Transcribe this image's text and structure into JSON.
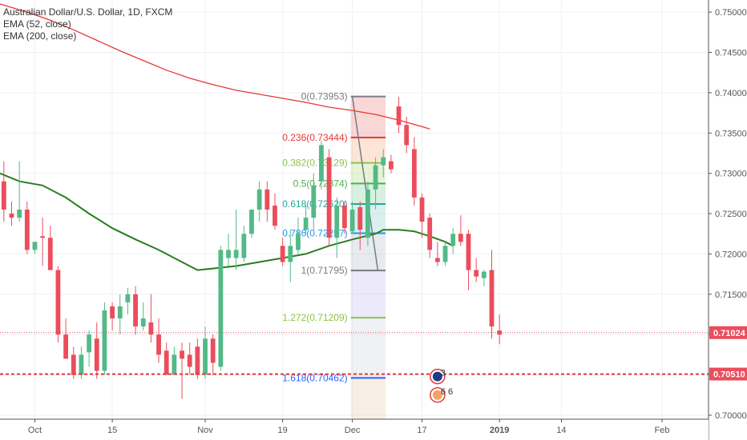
{
  "header": {
    "title": "Australian Dollar/U.S. Dollar, 1D, FXCM",
    "indicators": [
      "EMA (52, close)",
      "EMA (200, close)"
    ]
  },
  "colors": {
    "up": "#53b987",
    "down": "#eb4d5c",
    "ema52": "#2a7d1f",
    "ema200": "#e53935",
    "last_price_bg": "#eb4d5c",
    "support_line": "#e53935",
    "axis_text": "#555555"
  },
  "chart_data": {
    "type": "candlestick",
    "title": "Australian Dollar/U.S. Dollar, 1D, FXCM",
    "ylim": [
      0.6995,
      0.7515
    ],
    "y_ticks": [
      "0.75000",
      "0.74500",
      "0.74000",
      "0.73500",
      "0.73000",
      "0.72500",
      "0.72000",
      "0.71500",
      "0.71000",
      "0.70500",
      "0.70000"
    ],
    "x_ticks": [
      {
        "label": "Oct",
        "index": 4
      },
      {
        "label": "15",
        "index": 14
      },
      {
        "label": "Nov",
        "index": 26
      },
      {
        "label": "19",
        "index": 36
      },
      {
        "label": "Dec",
        "index": 45
      },
      {
        "label": "17",
        "index": 54
      },
      {
        "label": "2019",
        "index": 64
      },
      {
        "label": "14",
        "index": 72
      },
      {
        "label": "Feb",
        "index": 85
      }
    ],
    "index_range": [
      -0.5,
      91
    ],
    "last_price": "0.71024",
    "support_level": "0.70510",
    "candles": [
      [
        0.729,
        0.73,
        0.727,
        0.7285
      ],
      [
        0.729,
        0.7315,
        0.724,
        0.7255
      ],
      [
        0.725,
        0.7265,
        0.7235,
        0.7245
      ],
      [
        0.7245,
        0.7315,
        0.724,
        0.7255
      ],
      [
        0.7255,
        0.7265,
        0.72,
        0.7205
      ],
      [
        0.7205,
        0.7215,
        0.72,
        0.7215
      ],
      [
        0.7222,
        0.7245,
        0.7185,
        0.722
      ],
      [
        0.722,
        0.7235,
        0.718,
        0.718
      ],
      [
        0.718,
        0.7185,
        0.709,
        0.71
      ],
      [
        0.71,
        0.712,
        0.707,
        0.707
      ],
      [
        0.7075,
        0.7085,
        0.7045,
        0.705
      ],
      [
        0.705,
        0.7085,
        0.7045,
        0.7075
      ],
      [
        0.7078,
        0.7105,
        0.706,
        0.71
      ],
      [
        0.7095,
        0.7115,
        0.7045,
        0.7055
      ],
      [
        0.7055,
        0.714,
        0.705,
        0.713
      ],
      [
        0.7135,
        0.714,
        0.7105,
        0.712
      ],
      [
        0.712,
        0.715,
        0.71,
        0.7135
      ],
      [
        0.714,
        0.7158,
        0.7125,
        0.715
      ],
      [
        0.715,
        0.716,
        0.71,
        0.711
      ],
      [
        0.711,
        0.714,
        0.7105,
        0.712
      ],
      [
        0.7115,
        0.715,
        0.709,
        0.71
      ],
      [
        0.71,
        0.712,
        0.7065,
        0.7075
      ],
      [
        0.708,
        0.709,
        0.705,
        0.705
      ],
      [
        0.705,
        0.7085,
        0.705,
        0.7075
      ],
      [
        0.708,
        0.709,
        0.702,
        0.707
      ],
      [
        0.7075,
        0.709,
        0.705,
        0.706
      ],
      [
        0.7085,
        0.7095,
        0.7045,
        0.705
      ],
      [
        0.705,
        0.711,
        0.7045,
        0.7095
      ],
      [
        0.7095,
        0.71,
        0.705,
        0.7065
      ],
      [
        0.706,
        0.721,
        0.7055,
        0.7205
      ],
      [
        0.7195,
        0.7225,
        0.7185,
        0.7205
      ],
      [
        0.7195,
        0.7255,
        0.718,
        0.7205
      ],
      [
        0.7195,
        0.7235,
        0.719,
        0.7225
      ],
      [
        0.7225,
        0.7255,
        0.722,
        0.7255
      ],
      [
        0.7255,
        0.729,
        0.724,
        0.728
      ],
      [
        0.728,
        0.729,
        0.724,
        0.7255
      ],
      [
        0.726,
        0.7275,
        0.723,
        0.7235
      ],
      [
        0.721,
        0.722,
        0.7185,
        0.719
      ],
      [
        0.719,
        0.723,
        0.7165,
        0.721
      ],
      [
        0.7205,
        0.7245,
        0.72,
        0.7225
      ],
      [
        0.723,
        0.726,
        0.7225,
        0.7245
      ],
      [
        0.7245,
        0.73,
        0.723,
        0.7285
      ],
      [
        0.729,
        0.734,
        0.728,
        0.7335
      ],
      [
        0.732,
        0.733,
        0.721,
        0.722
      ],
      [
        0.722,
        0.727,
        0.7195,
        0.726
      ],
      [
        0.726,
        0.7265,
        0.7225,
        0.7232
      ],
      [
        0.7228,
        0.7265,
        0.7225,
        0.7255
      ],
      [
        0.7258,
        0.7265,
        0.7205,
        0.723
      ],
      [
        0.722,
        0.729,
        0.721,
        0.728
      ],
      [
        0.728,
        0.732,
        0.7255,
        0.731
      ],
      [
        0.731,
        0.733,
        0.7295,
        0.732
      ],
      [
        0.7315,
        0.7323,
        0.73,
        0.7305
      ],
      [
        0.7383,
        0.7395,
        0.735,
        0.736
      ],
      [
        0.736,
        0.737,
        0.7325,
        0.7335
      ],
      [
        0.733,
        0.7345,
        0.726,
        0.727
      ],
      [
        0.727,
        0.7275,
        0.722,
        0.724
      ],
      [
        0.7245,
        0.725,
        0.7195,
        0.7205
      ],
      [
        0.7195,
        0.7215,
        0.7185,
        0.719
      ],
      [
        0.719,
        0.7215,
        0.7185,
        0.721
      ],
      [
        0.721,
        0.7232,
        0.72,
        0.7225
      ],
      [
        0.7225,
        0.7248,
        0.721,
        0.7215
      ],
      [
        0.7225,
        0.723,
        0.7155,
        0.718
      ],
      [
        0.718,
        0.7195,
        0.7165,
        0.7172
      ],
      [
        0.717,
        0.718,
        0.716,
        0.7178
      ],
      [
        0.718,
        0.7205,
        0.7095,
        0.711
      ],
      [
        0.7105,
        0.7125,
        0.7088,
        0.71
      ]
    ],
    "candle_start_index": -1,
    "ema52": [
      [
        -0.5,
        0.73
      ],
      [
        2,
        0.729
      ],
      [
        5,
        0.7285
      ],
      [
        8,
        0.727
      ],
      [
        11,
        0.725
      ],
      [
        14,
        0.7232
      ],
      [
        17,
        0.7218
      ],
      [
        20,
        0.7205
      ],
      [
        23,
        0.719
      ],
      [
        25,
        0.718
      ],
      [
        27,
        0.7182
      ],
      [
        30,
        0.7185
      ],
      [
        33,
        0.719
      ],
      [
        36,
        0.7195
      ],
      [
        39,
        0.72
      ],
      [
        42,
        0.721
      ],
      [
        45,
        0.7218
      ],
      [
        48,
        0.7225
      ],
      [
        49,
        0.723
      ],
      [
        51,
        0.723
      ],
      [
        53,
        0.7228
      ],
      [
        55,
        0.7222
      ],
      [
        57,
        0.7215
      ],
      [
        58,
        0.721
      ]
    ],
    "ema200": [
      [
        -0.5,
        0.751
      ],
      [
        3,
        0.75
      ],
      [
        6,
        0.749
      ],
      [
        9,
        0.7478
      ],
      [
        12,
        0.7465
      ],
      [
        15,
        0.7452
      ],
      [
        18,
        0.744
      ],
      [
        21,
        0.7428
      ],
      [
        24,
        0.7418
      ],
      [
        27,
        0.741
      ],
      [
        30,
        0.7403
      ],
      [
        33,
        0.7398
      ],
      [
        36,
        0.7393
      ],
      [
        39,
        0.7388
      ],
      [
        42,
        0.7382
      ],
      [
        45,
        0.7378
      ],
      [
        48,
        0.7373
      ],
      [
        51,
        0.7366
      ],
      [
        54,
        0.7358
      ],
      [
        55,
        0.7355
      ]
    ],
    "fibonacci": {
      "start_index": 44.8,
      "end_index": 49.3,
      "swing_start": 0.73953,
      "swing_end": 0.71795,
      "trend_points": [
        [
          45,
          0.73953
        ],
        [
          48.3,
          0.71795
        ]
      ],
      "levels": [
        {
          "label": "0(0.73953)",
          "value": 0.73953,
          "color": "#787b86"
        },
        {
          "label": "0.236(0.73444)",
          "value": 0.73444,
          "color": "#e53935"
        },
        {
          "label": "0.382(0.73129)",
          "value": 0.73129,
          "color": "#8bc34a"
        },
        {
          "label": "0.5(0.72874)",
          "value": 0.72874,
          "color": "#4caf50"
        },
        {
          "label": "0.618(0.72620)",
          "value": 0.7262,
          "color": "#26a69a"
        },
        {
          "label": "0.786(0.72257)",
          "value": 0.72257,
          "color": "#2196f3"
        },
        {
          "label": "1(0.71795)",
          "value": 0.71795,
          "color": "#787b86"
        },
        {
          "label": "1.272(0.71209)",
          "value": 0.71209,
          "color": "#8bc34a"
        },
        {
          "label": "1.618(0.70462)",
          "value": 0.70462,
          "color": "#2962ff"
        }
      ],
      "bands": [
        {
          "from": 0.73953,
          "to": 0.73444,
          "color": "#f28b8b"
        },
        {
          "from": 0.73444,
          "to": 0.73129,
          "color": "#f6b48c"
        },
        {
          "from": 0.73129,
          "to": 0.72874,
          "color": "#b9dc8a"
        },
        {
          "from": 0.72874,
          "to": 0.7262,
          "color": "#8fd4a3"
        },
        {
          "from": 0.7262,
          "to": 0.72257,
          "color": "#8fd8d0"
        },
        {
          "from": 0.72257,
          "to": 0.71795,
          "color": "#b9c2cf"
        },
        {
          "from": 0.71795,
          "to": 0.71209,
          "color": "#c9c2f0"
        },
        {
          "from": 0.71209,
          "to": 0.70462,
          "color": "#d2d8e2"
        },
        {
          "from": 0.70462,
          "to": 0.6995,
          "color": "#e8d2b0"
        }
      ]
    },
    "events": [
      {
        "index": 56,
        "value": 0.7048,
        "count": "3",
        "flag": "au"
      },
      {
        "index": 56,
        "value": 0.7025,
        "count": "6 6",
        "flag": "us"
      }
    ]
  }
}
